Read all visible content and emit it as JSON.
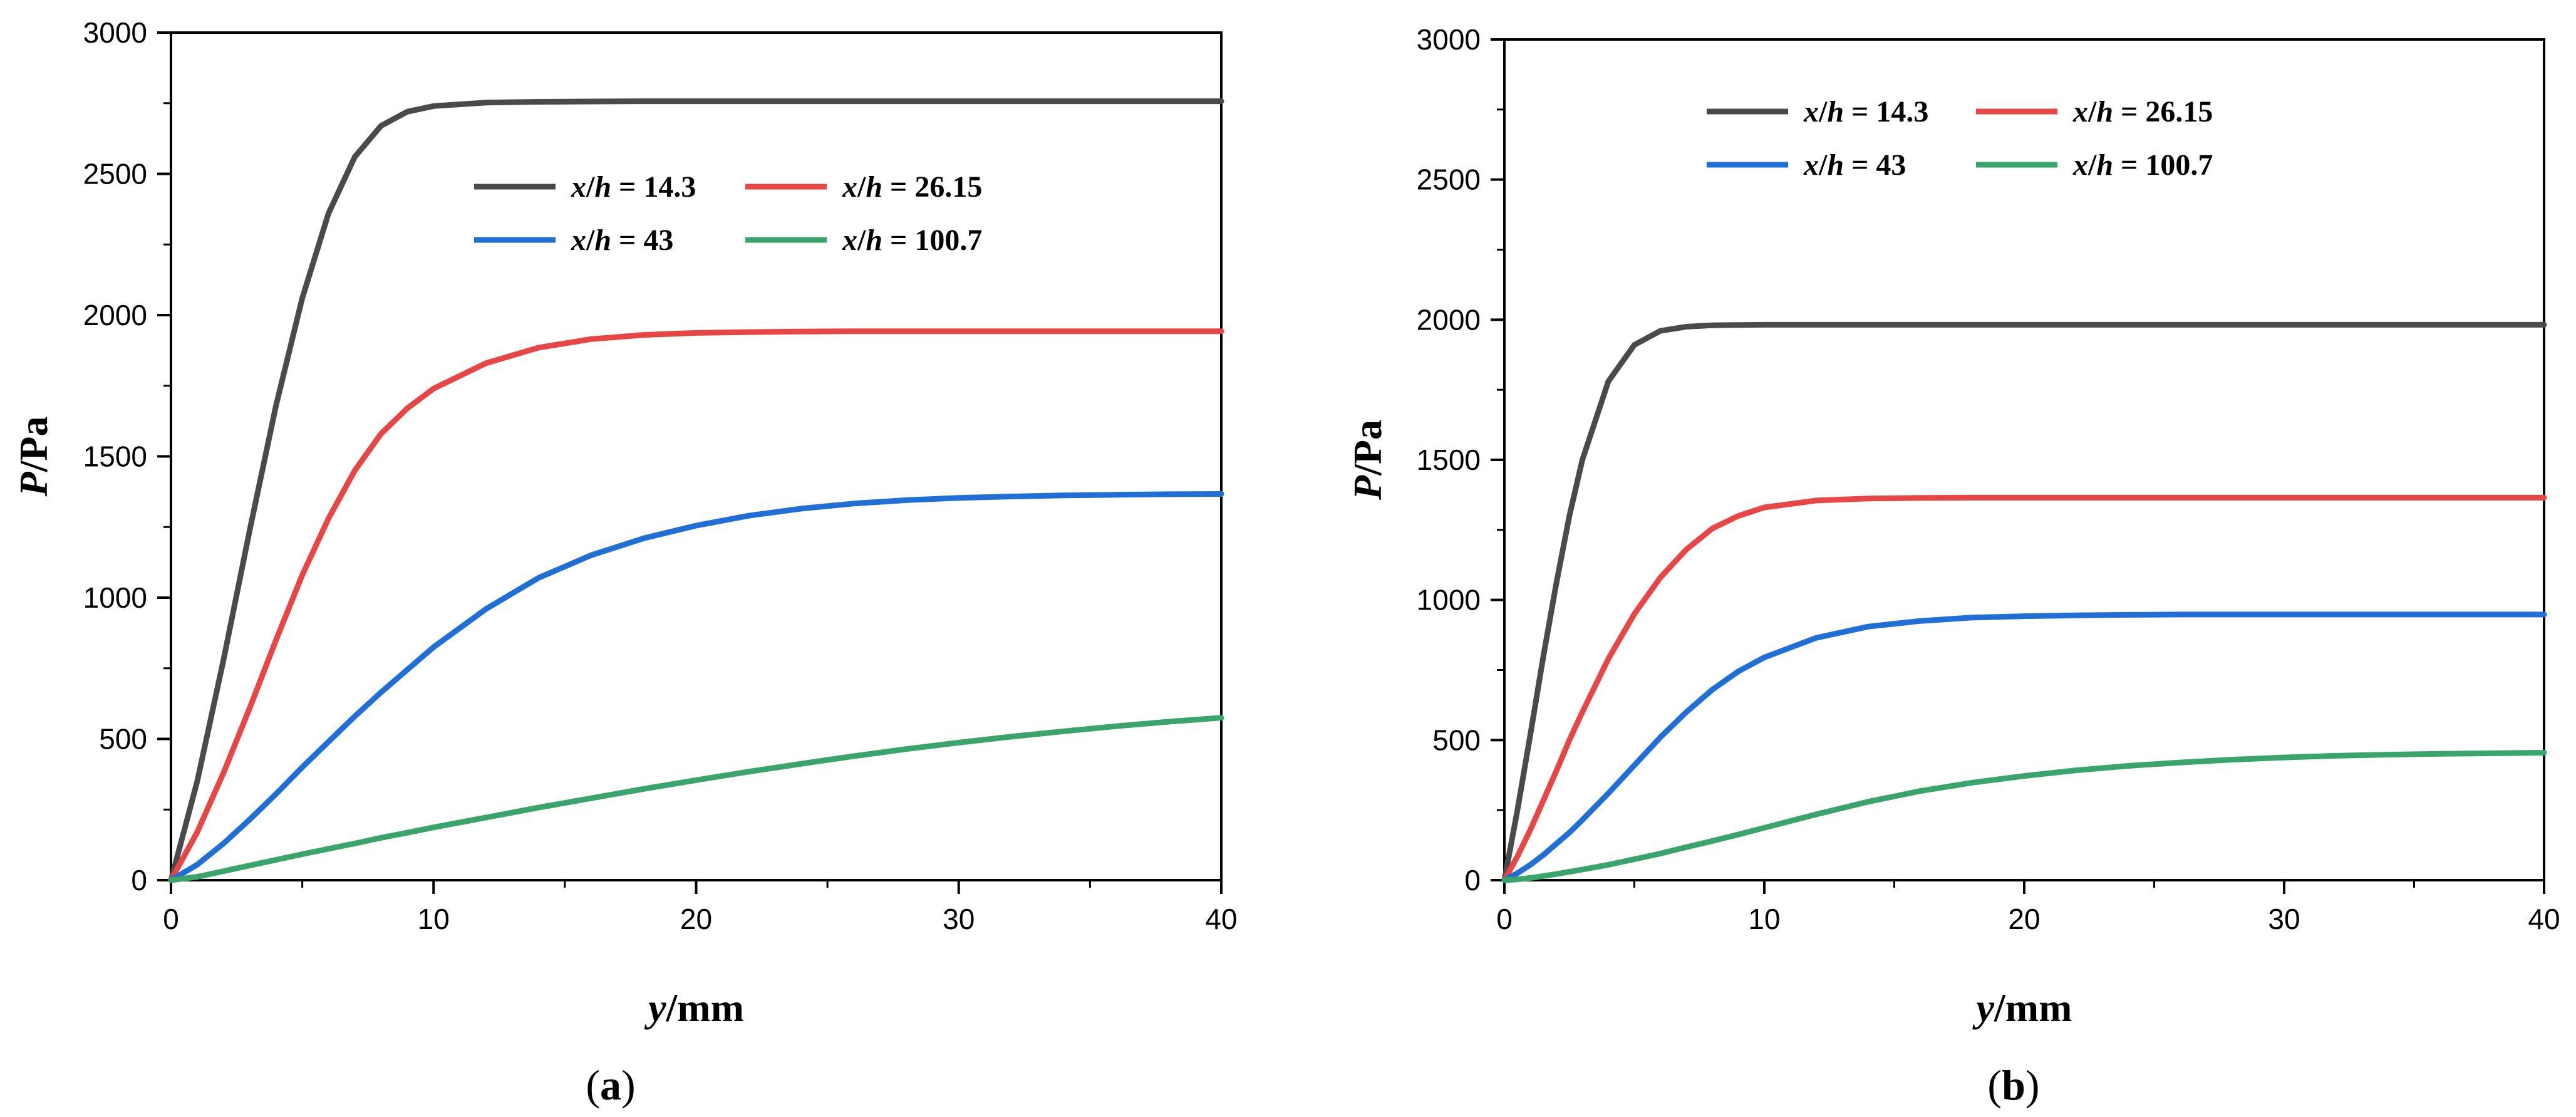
{
  "chart_data": [
    {
      "type": "line",
      "panel_label": "(a)",
      "panel_letter": "a",
      "xlabel_var": "y",
      "xlabel_unit": "/mm",
      "ylabel_var": "P",
      "ylabel_unit": "/Pa",
      "xlim": [
        0,
        40
      ],
      "ylim": [
        0,
        3000
      ],
      "xticks": [
        0,
        10,
        20,
        30,
        40
      ],
      "yticks": [
        0,
        500,
        1000,
        1500,
        2000,
        2500,
        3000
      ],
      "x": [
        0,
        1,
        2,
        3,
        4,
        5,
        6,
        7,
        8,
        9,
        10,
        12,
        14,
        16,
        18,
        20,
        22,
        24,
        26,
        28,
        30,
        32,
        34,
        36,
        38,
        40
      ],
      "series": [
        {
          "name": "x/h = 14.3",
          "var": "x/h",
          "value": "14.3",
          "color": "#4a4a4a",
          "values": [
            0,
            350,
            780,
            1240,
            1680,
            2060,
            2360,
            2560,
            2670,
            2720,
            2740,
            2752,
            2755,
            2756,
            2757,
            2757,
            2757,
            2757,
            2757,
            2757,
            2757,
            2757,
            2757,
            2757,
            2757,
            2757
          ]
        },
        {
          "name": "x/h = 26.15",
          "var": "x/h",
          "value": "26.15",
          "color": "#e84545",
          "values": [
            0,
            170,
            380,
            610,
            850,
            1080,
            1280,
            1450,
            1580,
            1670,
            1740,
            1830,
            1885,
            1915,
            1930,
            1937,
            1940,
            1942,
            1943,
            1943,
            1943,
            1943,
            1943,
            1943,
            1943,
            1943
          ]
        },
        {
          "name": "x/h = 43",
          "var": "x/h",
          "value": "43",
          "color": "#1f6fd6",
          "values": [
            0,
            55,
            130,
            215,
            305,
            400,
            490,
            580,
            665,
            745,
            825,
            960,
            1070,
            1150,
            1210,
            1255,
            1290,
            1315,
            1333,
            1345,
            1353,
            1358,
            1362,
            1364,
            1366,
            1367
          ]
        },
        {
          "name": "x/h = 100.7",
          "var": "x/h",
          "value": "100.7",
          "color": "#3aa56a",
          "values": [
            0,
            12,
            32,
            52,
            72,
            92,
            111,
            130,
            150,
            168,
            187,
            222,
            257,
            290,
            323,
            354,
            384,
            412,
            439,
            464,
            487,
            508,
            527,
            545,
            561,
            575
          ]
        }
      ]
    },
    {
      "type": "line",
      "panel_label": "(b)",
      "panel_letter": "b",
      "xlabel_var": "y",
      "xlabel_unit": "/mm",
      "ylabel_var": "P",
      "ylabel_unit": "/Pa",
      "xlim": [
        0,
        40
      ],
      "ylim": [
        0,
        3000
      ],
      "xticks": [
        0,
        10,
        20,
        30,
        40
      ],
      "yticks": [
        0,
        500,
        1000,
        1500,
        2000,
        2500,
        3000
      ],
      "x": [
        0,
        0.5,
        1,
        1.5,
        2,
        2.5,
        3,
        4,
        5,
        6,
        7,
        8,
        9,
        10,
        12,
        14,
        16,
        18,
        20,
        22,
        24,
        26,
        28,
        30,
        32,
        34,
        36,
        38,
        40
      ],
      "series": [
        {
          "name": "x/h = 14.3",
          "var": "x/h",
          "value": "14.3",
          "color": "#4a4a4a",
          "values": [
            0,
            250,
            520,
            800,
            1060,
            1300,
            1500,
            1780,
            1910,
            1960,
            1975,
            1980,
            1981,
            1982,
            1982,
            1982,
            1982,
            1982,
            1982,
            1982,
            1982,
            1982,
            1982,
            1982,
            1982,
            1982,
            1982,
            1982,
            1982
          ]
        },
        {
          "name": "x/h = 26.15",
          "var": "x/h",
          "value": "26.15",
          "color": "#e84545",
          "values": [
            0,
            85,
            180,
            285,
            390,
            500,
            600,
            790,
            950,
            1080,
            1180,
            1255,
            1300,
            1330,
            1355,
            1362,
            1364,
            1365,
            1365,
            1365,
            1365,
            1365,
            1365,
            1365,
            1365,
            1365,
            1365,
            1365,
            1365
          ]
        },
        {
          "name": "x/h = 43",
          "var": "x/h",
          "value": "43",
          "color": "#1f6fd6",
          "values": [
            0,
            25,
            55,
            90,
            130,
            170,
            215,
            310,
            410,
            510,
            600,
            680,
            745,
            795,
            865,
            905,
            925,
            937,
            942,
            945,
            947,
            948,
            948,
            948,
            948,
            948,
            948,
            948,
            948
          ]
        },
        {
          "name": "x/h = 100.7",
          "var": "x/h",
          "value": "100.7",
          "color": "#3aa56a",
          "values": [
            0,
            3,
            8,
            15,
            22,
            30,
            38,
            55,
            75,
            95,
            118,
            140,
            163,
            187,
            235,
            280,
            318,
            348,
            372,
            392,
            408,
            420,
            430,
            438,
            444,
            448,
            451,
            453,
            455
          ]
        }
      ]
    }
  ]
}
